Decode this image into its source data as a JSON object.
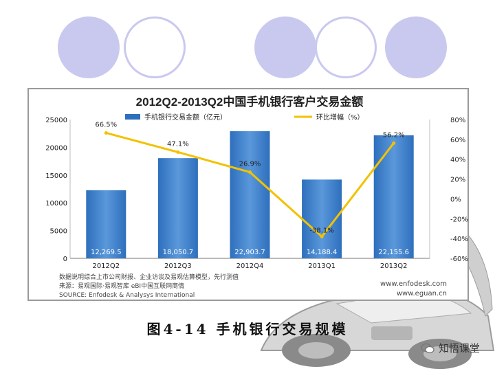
{
  "caption": "图4-14  手机银行交易规模",
  "brand": {
    "label": "知悟课堂"
  },
  "watermark": "知悟课堂",
  "colors": {
    "bar": "#2e6fbd",
    "bar_light": "#5a98da",
    "line": "#f2c200",
    "frame": "#9a9a9a"
  },
  "chart_data": {
    "type": "bar",
    "title": "2012Q2-2013Q2中国手机银行客户交易金额",
    "categories": [
      "2012Q2",
      "2012Q3",
      "2012Q4",
      "2013Q1",
      "2013Q2"
    ],
    "series": [
      {
        "name": "手机银行交易金额（亿元）",
        "type": "bar",
        "values": [
          12269.5,
          18050.7,
          22903.7,
          14188.4,
          22155.6
        ],
        "labels": [
          "12,269.5",
          "18,050.7",
          "22,903.7",
          "14,188.4",
          "22,155.6"
        ]
      },
      {
        "name": "环比增幅（%）",
        "type": "line",
        "axis": "right",
        "values": [
          66.5,
          47.1,
          26.9,
          -38.1,
          56.2
        ],
        "labels": [
          "66.5%",
          "47.1%",
          "26.9%",
          "-38.1%",
          "56.2%"
        ]
      }
    ],
    "ylim": [
      0,
      25000
    ],
    "yticks": [
      "0",
      "5000",
      "10000",
      "15000",
      "20000",
      "25000"
    ],
    "y2lim": [
      -60,
      80
    ],
    "y2ticks": [
      "80%",
      "60%",
      "40%",
      "20%",
      "0%",
      "-20%",
      "-40%",
      "-60%"
    ],
    "legend": "top",
    "grid": false,
    "notes": [
      "数据说明综合上市公司财报、企业访谈及易观估算模型，先行测值",
      "来源：易观国际·易观智库  eBI中国互联网商情",
      "SOURCE: Enfodesk & Analysys International"
    ],
    "websites": [
      "www.enfodesk.com",
      "www.eguan.cn"
    ]
  }
}
